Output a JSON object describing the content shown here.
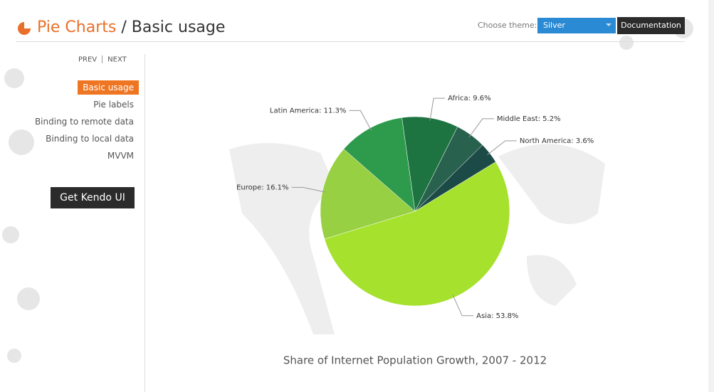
{
  "header": {
    "section": "Pie Charts",
    "separator": "/",
    "page": "Basic usage"
  },
  "theme": {
    "label": "Choose theme:",
    "selected": "Silver",
    "button": "Documentation"
  },
  "nav": {
    "prev": "PREV",
    "next": "NEXT",
    "items": [
      "Basic usage",
      "Pie labels",
      "Binding to remote data",
      "Binding to local data",
      "MVVM"
    ],
    "active": 0,
    "cta": "Get Kendo UI"
  },
  "chart_data": {
    "type": "pie",
    "title": "Share of Internet Population Growth, 2007 - 2012",
    "values": [
      9.6,
      5.2,
      3.6,
      53.8,
      16.1,
      11.3
    ],
    "value_labels": [
      "Africa: 9.6%",
      "Middle East: 5.2%",
      "North America: 3.6%",
      "Asia: 53.8%",
      "Europe: 16.1%",
      "Latin America: 11.3%"
    ],
    "colors": [
      "#1d7440",
      "#28624e",
      "#1c4b47",
      "#a6e12e",
      "#98d043",
      "#2e9a4c"
    ]
  }
}
